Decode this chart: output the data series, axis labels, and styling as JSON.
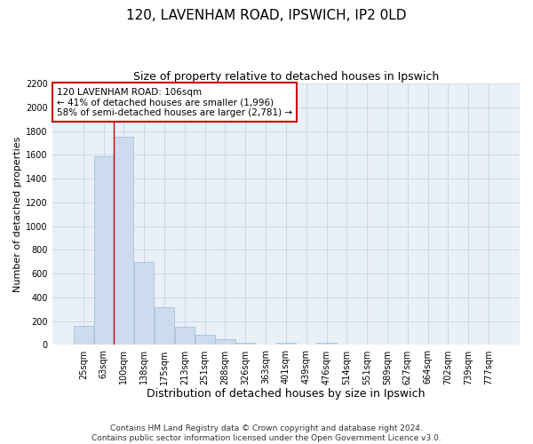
{
  "title": "120, LAVENHAM ROAD, IPSWICH, IP2 0LD",
  "subtitle": "Size of property relative to detached houses in Ipswich",
  "xlabel": "Distribution of detached houses by size in Ipswich",
  "ylabel": "Number of detached properties",
  "footer_line1": "Contains HM Land Registry data © Crown copyright and database right 2024.",
  "footer_line2": "Contains public sector information licensed under the Open Government Licence v3.0.",
  "bar_labels": [
    "25sqm",
    "63sqm",
    "100sqm",
    "138sqm",
    "175sqm",
    "213sqm",
    "251sqm",
    "288sqm",
    "326sqm",
    "363sqm",
    "401sqm",
    "439sqm",
    "476sqm",
    "514sqm",
    "551sqm",
    "589sqm",
    "627sqm",
    "664sqm",
    "702sqm",
    "739sqm",
    "777sqm"
  ],
  "bar_values": [
    160,
    1590,
    1755,
    700,
    315,
    155,
    85,
    47,
    22,
    0,
    18,
    0,
    18,
    0,
    0,
    0,
    0,
    0,
    0,
    0,
    0
  ],
  "bar_color": "#ccdcee",
  "bar_edge_color": "#a8c0d8",
  "grid_color": "#ccd8e8",
  "background_color": "#eaf0f8",
  "vline_color": "#cc0000",
  "annotation_text": "120 LAVENHAM ROAD: 106sqm\n← 41% of detached houses are smaller (1,996)\n58% of semi-detached houses are larger (2,781) →",
  "annotation_box_color": "#ffffff",
  "annotation_box_edge": "#cc0000",
  "annotation_fontsize": 7.5,
  "ylim": [
    0,
    2200
  ],
  "yticks": [
    0,
    200,
    400,
    600,
    800,
    1000,
    1200,
    1400,
    1600,
    1800,
    2000,
    2200
  ],
  "title_fontsize": 11,
  "subtitle_fontsize": 9,
  "xlabel_fontsize": 9,
  "ylabel_fontsize": 8,
  "tick_fontsize": 7,
  "footer_fontsize": 6.5
}
